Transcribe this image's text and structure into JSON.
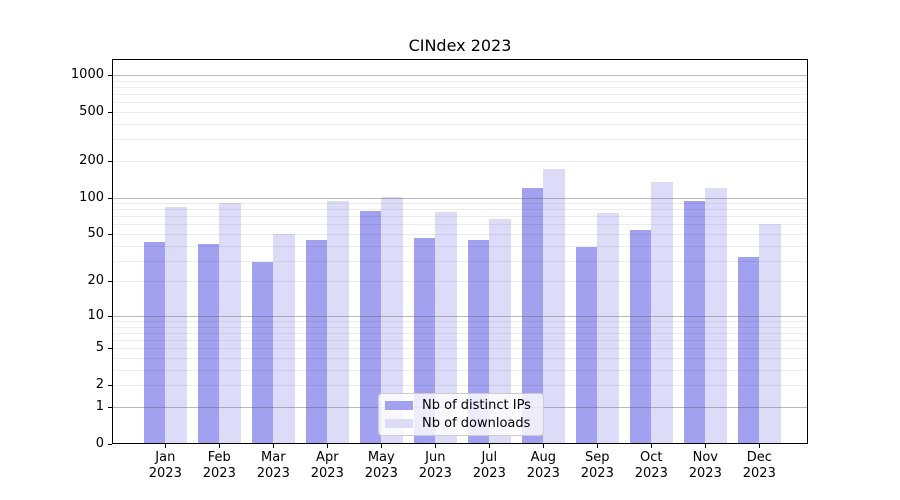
{
  "chart_data": {
    "type": "bar",
    "title": "CINdex 2023",
    "categories": [
      "Jan",
      "Feb",
      "Mar",
      "Apr",
      "May",
      "Jun",
      "Jul",
      "Aug",
      "Sep",
      "Oct",
      "Nov",
      "Dec"
    ],
    "year": "2023",
    "series": [
      {
        "name": "Nb of distinct IPs",
        "color": "#a1a1f0",
        "values": [
          43,
          41,
          29,
          45,
          77,
          46,
          45,
          120,
          39,
          54,
          93,
          32
        ]
      },
      {
        "name": "Nb of downloads",
        "color": "#dcdcf8",
        "values": [
          83,
          90,
          50,
          94,
          101,
          76,
          66,
          170,
          74,
          135,
          120,
          61
        ]
      }
    ],
    "yticks": [
      0,
      1,
      2,
      5,
      10,
      20,
      50,
      100,
      200,
      500,
      1000
    ],
    "major_gridlines": [
      1,
      10,
      100,
      1000
    ],
    "yscale": "log(1+y)",
    "ylim": [
      0,
      1350
    ],
    "grid": true,
    "legend_position": "lower center inside axes"
  }
}
